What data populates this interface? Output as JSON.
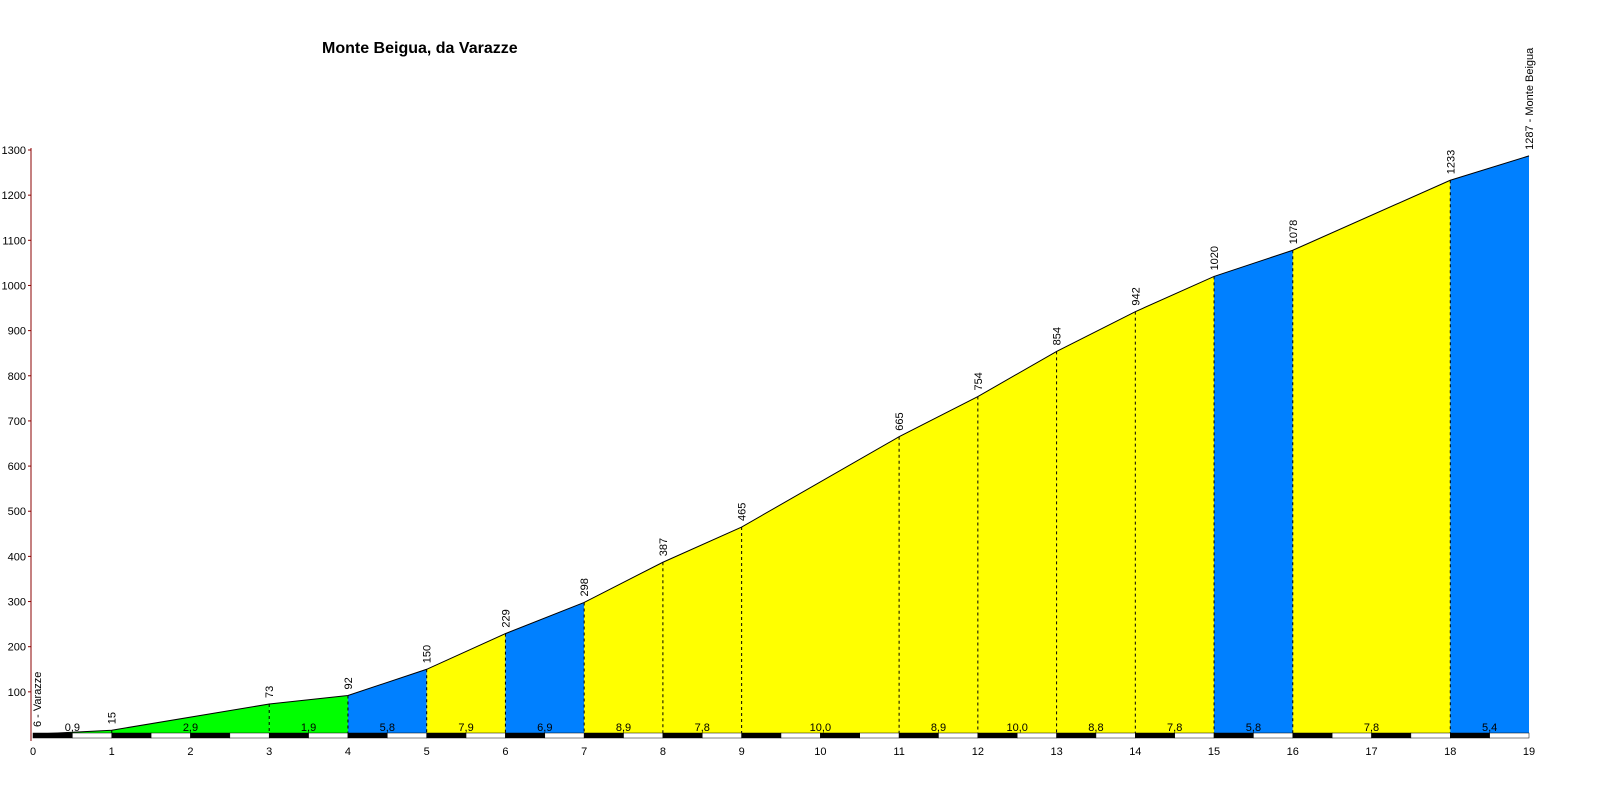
{
  "chart_data": {
    "type": "area",
    "title": "Monte Beigua, da Varazze",
    "xlabel": "",
    "ylabel": "",
    "xlim": [
      0,
      19
    ],
    "ylim": [
      0,
      1300
    ],
    "x_ticks": [
      0,
      1,
      2,
      3,
      4,
      5,
      6,
      7,
      8,
      9,
      10,
      11,
      12,
      13,
      14,
      15,
      16,
      17,
      18,
      19
    ],
    "y_ticks": [
      100,
      200,
      300,
      400,
      500,
      600,
      700,
      800,
      900,
      1000,
      1100,
      1200,
      1300
    ],
    "points": [
      {
        "x": 0,
        "y": 6,
        "label": "6 - Varazze"
      },
      {
        "x": 1,
        "y": 15,
        "label": "15"
      },
      {
        "x": 3,
        "y": 73,
        "label": "73"
      },
      {
        "x": 4,
        "y": 92,
        "label": "92"
      },
      {
        "x": 5,
        "y": 150,
        "label": "150"
      },
      {
        "x": 6,
        "y": 229,
        "label": "229"
      },
      {
        "x": 7,
        "y": 298,
        "label": "298"
      },
      {
        "x": 8,
        "y": 387,
        "label": "387"
      },
      {
        "x": 9,
        "y": 465,
        "label": "465"
      },
      {
        "x": 11,
        "y": 665,
        "label": "665"
      },
      {
        "x": 12,
        "y": 754,
        "label": "754"
      },
      {
        "x": 13,
        "y": 854,
        "label": "854"
      },
      {
        "x": 14,
        "y": 942,
        "label": "942"
      },
      {
        "x": 15,
        "y": 1020,
        "label": "1020"
      },
      {
        "x": 16,
        "y": 1078,
        "label": "1078"
      },
      {
        "x": 18,
        "y": 1233,
        "label": "1233"
      },
      {
        "x": 19,
        "y": 1287,
        "label": "1287 - Monte Beigua"
      }
    ],
    "segments": [
      {
        "from": 0,
        "to": 1,
        "gradient": "0,9",
        "color": "#00ff00"
      },
      {
        "from": 1,
        "to": 3,
        "gradient": "2,9",
        "color": "#00ff00"
      },
      {
        "from": 3,
        "to": 4,
        "gradient": "1,9",
        "color": "#00ff00"
      },
      {
        "from": 4,
        "to": 5,
        "gradient": "5,8",
        "color": "#0080ff"
      },
      {
        "from": 5,
        "to": 6,
        "gradient": "7,9",
        "color": "#ffff00"
      },
      {
        "from": 6,
        "to": 7,
        "gradient": "6,9",
        "color": "#0080ff"
      },
      {
        "from": 7,
        "to": 8,
        "gradient": "8,9",
        "color": "#ffff00"
      },
      {
        "from": 8,
        "to": 9,
        "gradient": "7,8",
        "color": "#ffff00"
      },
      {
        "from": 9,
        "to": 11,
        "gradient": "10,0",
        "color": "#ffff00"
      },
      {
        "from": 11,
        "to": 12,
        "gradient": "8,9",
        "color": "#ffff00"
      },
      {
        "from": 12,
        "to": 13,
        "gradient": "10,0",
        "color": "#ffff00"
      },
      {
        "from": 13,
        "to": 14,
        "gradient": "8,8",
        "color": "#ffff00"
      },
      {
        "from": 14,
        "to": 15,
        "gradient": "7,8",
        "color": "#ffff00"
      },
      {
        "from": 15,
        "to": 16,
        "gradient": "5,8",
        "color": "#0080ff"
      },
      {
        "from": 16,
        "to": 18,
        "gradient": "7,8",
        "color": "#ffff00"
      },
      {
        "from": 18,
        "to": 19,
        "gradient": "5,4",
        "color": "#0080ff"
      }
    ]
  }
}
